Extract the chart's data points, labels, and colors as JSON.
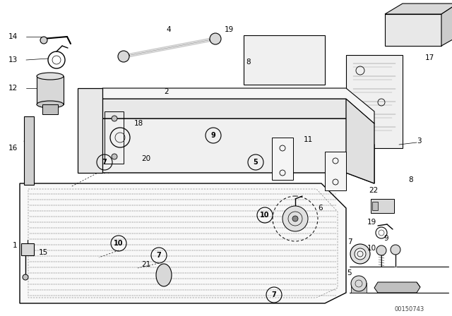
{
  "bg_color": "#ffffff",
  "line_color": "#000000",
  "watermark": "00150743",
  "fig_width": 6.4,
  "fig_height": 4.48,
  "dpi": 100
}
